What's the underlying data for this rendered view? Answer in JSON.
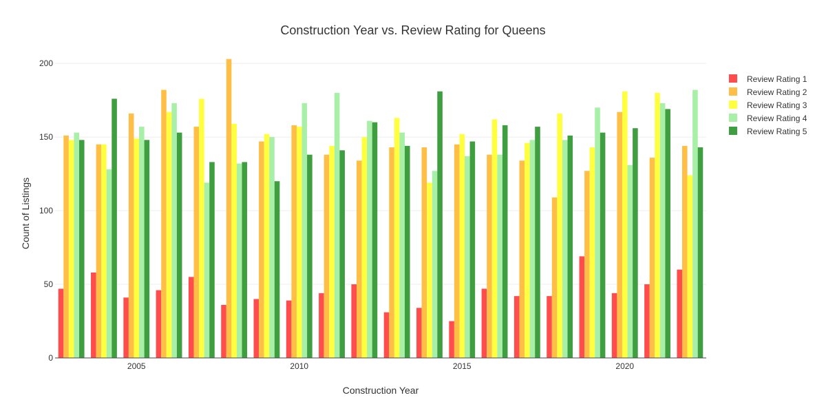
{
  "chart_data": {
    "type": "bar",
    "title": "Construction Year vs. Review Rating for Queens",
    "xlabel": "Construction Year",
    "ylabel": "Count of Listings",
    "categories": [
      2003,
      2004,
      2005,
      2006,
      2007,
      2008,
      2009,
      2010,
      2011,
      2012,
      2013,
      2014,
      2015,
      2016,
      2017,
      2018,
      2019,
      2020,
      2021,
      2022
    ],
    "x_ticks": [
      "2005",
      "2010",
      "2015",
      "2020"
    ],
    "y_ticks": [
      "0",
      "50",
      "100",
      "150",
      "200"
    ],
    "ylim": [
      0,
      215
    ],
    "grid": true,
    "legend_position": "top-right",
    "series": [
      {
        "name": "Review Rating 1",
        "color": "#ff4d4d",
        "values": [
          47,
          58,
          41,
          46,
          55,
          36,
          40,
          39,
          44,
          50,
          31,
          34,
          25,
          47,
          42,
          42,
          69,
          44,
          50,
          60
        ]
      },
      {
        "name": "Review Rating 2",
        "color": "#ffbf47",
        "values": [
          151,
          145,
          166,
          182,
          157,
          203,
          147,
          158,
          138,
          134,
          143,
          143,
          145,
          138,
          134,
          109,
          127,
          167,
          136,
          144
        ]
      },
      {
        "name": "Review Rating 3",
        "color": "#ffff40",
        "values": [
          148,
          145,
          149,
          167,
          176,
          159,
          152,
          157,
          144,
          150,
          163,
          119,
          152,
          162,
          146,
          166,
          143,
          181,
          180,
          124
        ]
      },
      {
        "name": "Review Rating 4",
        "color": "#a8f0a8",
        "values": [
          153,
          128,
          157,
          173,
          119,
          132,
          150,
          173,
          180,
          161,
          153,
          127,
          137,
          138,
          148,
          148,
          170,
          131,
          173,
          182
        ]
      },
      {
        "name": "Review Rating 5",
        "color": "#3f9e3f",
        "values": [
          148,
          176,
          148,
          153,
          133,
          133,
          120,
          138,
          141,
          160,
          144,
          181,
          147,
          158,
          157,
          151,
          153,
          156,
          169,
          143
        ]
      }
    ]
  }
}
